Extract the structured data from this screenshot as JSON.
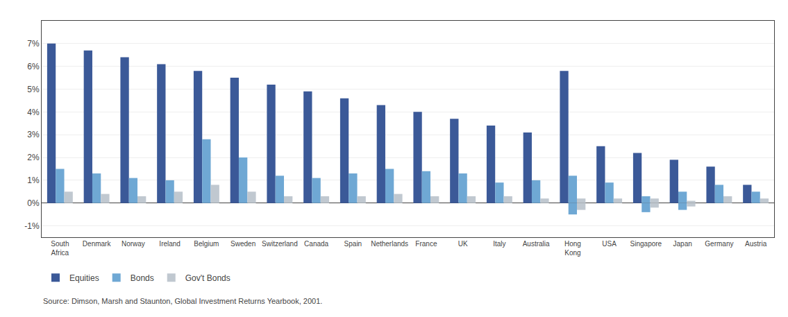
{
  "chart_data": {
    "type": "bar",
    "categories": [
      "South\nAfrica",
      "Denmark",
      "Norway",
      "Ireland",
      "Belgium",
      "Sweden",
      "Switzerland",
      "Canada",
      "Spain",
      "Netherlands",
      "France",
      "UK",
      "Italy",
      "Australia",
      "Hong\nKong",
      "USA",
      "Singapore",
      "Japan",
      "Germany",
      "Austria"
    ],
    "series": [
      {
        "name": "Equities",
        "color": "#3b5998",
        "values": [
          7.0,
          6.7,
          6.4,
          6.1,
          5.8,
          5.5,
          5.2,
          4.9,
          4.6,
          4.3,
          4.0,
          3.7,
          3.4,
          3.1,
          5.8,
          2.5,
          2.2,
          1.9,
          1.6,
          0.8
        ]
      },
      {
        "name": "Bonds",
        "color": "#6fa8d4",
        "values": [
          1.5,
          1.3,
          1.1,
          1.0,
          2.8,
          2.0,
          1.2,
          1.1,
          1.3,
          1.5,
          1.4,
          1.3,
          0.9,
          1.0,
          1.2,
          0.9,
          0.3,
          0.5,
          0.8,
          0.5
        ]
      },
      {
        "name": "Gov't Bonds",
        "color": "#c0c8d0",
        "values": [
          0.5,
          0.4,
          0.3,
          0.5,
          0.8,
          0.5,
          0.3,
          0.3,
          0.3,
          0.4,
          0.3,
          0.3,
          0.3,
          0.2,
          0.2,
          0.2,
          0.2,
          0.1,
          0.3,
          0.2
        ]
      },
      {
        "color": "#6fa8d4",
        "values": [
          0,
          0,
          0,
          0,
          0,
          0,
          0,
          0,
          0,
          0,
          0,
          0,
          0,
          0,
          -0.5,
          0,
          -0.4,
          -0.3,
          0,
          0
        ]
      },
      {
        "color": "#c0c8d0",
        "values": [
          0,
          0,
          0,
          0,
          0,
          0,
          0,
          0,
          0,
          0,
          0,
          0,
          0,
          0,
          -0.3,
          0,
          -0.2,
          -0.15,
          0,
          0
        ]
      }
    ],
    "ylim": [
      -1.5,
      8.0
    ],
    "yticks": [
      {
        "value": -1,
        "label": "-1%"
      },
      {
        "value": 0,
        "label": "0%"
      },
      {
        "value": 1,
        "label": "1%"
      },
      {
        "value": 2,
        "label": "2%"
      },
      {
        "value": 3,
        "label": "3%"
      },
      {
        "value": 4,
        "label": "4%"
      },
      {
        "value": 5,
        "label": "5%"
      },
      {
        "value": 6,
        "label": "6%"
      },
      {
        "value": 7,
        "label": "7%"
      }
    ],
    "grid": true,
    "legend": "bottom",
    "annotations": [
      "Source: Dimson, Marsh and Staunton, Global Investment Returns Yearbook, 2001."
    ]
  }
}
